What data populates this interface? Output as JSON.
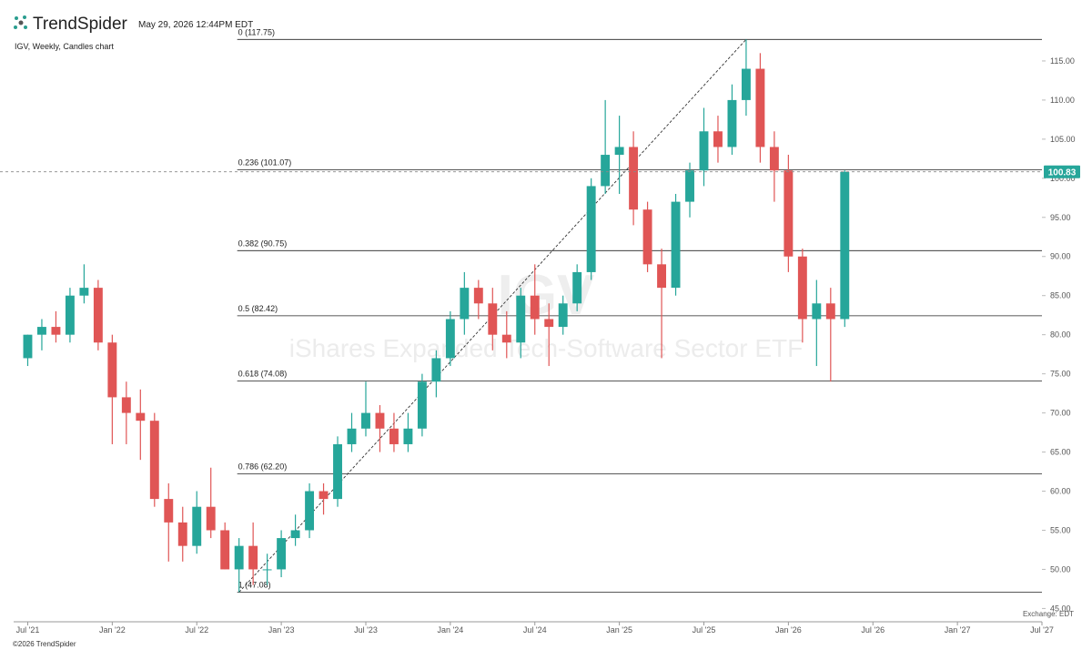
{
  "header": {
    "logo": "TrendSpider",
    "timestamp": "May 29, 2026 12:44PM EDT"
  },
  "footer": {
    "copyright": "©2026 TrendSpider",
    "exchange": "Exchange: EDT"
  },
  "chart_data": {
    "type": "candlestick",
    "title": "IGV, Weekly, Candles chart",
    "watermark_symbol": "IGV",
    "watermark_name": "iShares Expanded Tech-Software Sector ETF",
    "up_color": "#26a69a",
    "down_color": "#e05555",
    "x": [
      "2021-07",
      "2021-08",
      "2021-09",
      "2021-10",
      "2021-11",
      "2021-12",
      "2022-01",
      "2022-02",
      "2022-03",
      "2022-04",
      "2022-05",
      "2022-06",
      "2022-07",
      "2022-08",
      "2022-09",
      "2022-10",
      "2022-11",
      "2022-12",
      "2023-01",
      "2023-02",
      "2023-03",
      "2023-04",
      "2023-05",
      "2023-06",
      "2023-07",
      "2023-08",
      "2023-09",
      "2023-10",
      "2023-11",
      "2023-12",
      "2024-01",
      "2024-02",
      "2024-03",
      "2024-04",
      "2024-05",
      "2024-06",
      "2024-07",
      "2024-08",
      "2024-09",
      "2024-10",
      "2024-11",
      "2024-12",
      "2025-01",
      "2025-02",
      "2025-03",
      "2025-04",
      "2025-05",
      "2025-06",
      "2025-07",
      "2025-08",
      "2025-09",
      "2025-10",
      "2025-11",
      "2025-12",
      "2026-01",
      "2026-02",
      "2026-03",
      "2026-04",
      "2026-05"
    ],
    "open": [
      77,
      80,
      81,
      80,
      85,
      86,
      79,
      72,
      70,
      69,
      59,
      56,
      53,
      58,
      55,
      50,
      53,
      50,
      50,
      54,
      55,
      60,
      59,
      66,
      68,
      70,
      68,
      66,
      68,
      74,
      77,
      82,
      86,
      84,
      80,
      79,
      85,
      82,
      81,
      84,
      88,
      99,
      103,
      104,
      96,
      89,
      86,
      97,
      101,
      106,
      104,
      110,
      114,
      104,
      101,
      90,
      82,
      84,
      82
    ],
    "high": [
      80,
      82,
      83,
      86,
      89,
      87,
      80,
      74,
      73,
      70,
      61,
      58,
      60,
      63,
      56,
      54,
      56,
      52,
      55,
      57,
      61,
      61,
      67,
      70,
      74,
      71,
      70,
      70,
      75,
      78,
      83,
      88,
      87,
      86,
      83,
      86,
      89,
      84,
      85,
      89,
      100,
      110,
      108,
      106,
      97,
      91,
      98,
      102,
      109,
      108,
      112,
      117.75,
      116,
      106,
      103,
      91,
      87,
      86,
      101
    ],
    "low": [
      76,
      78,
      79,
      79,
      84,
      78,
      66,
      66,
      64,
      58,
      51,
      51,
      52,
      54,
      50,
      47.08,
      48,
      48,
      49,
      53,
      54,
      57,
      58,
      65,
      67,
      65,
      65,
      65,
      67,
      72,
      76,
      80,
      82,
      78,
      77,
      77,
      80,
      76,
      80,
      83,
      87,
      98,
      98,
      94,
      88,
      77,
      85,
      95,
      99,
      102,
      103,
      108,
      102,
      97,
      88,
      79,
      76,
      74,
      81
    ],
    "close": [
      80,
      81,
      80,
      85,
      86,
      79,
      72,
      70,
      69,
      59,
      56,
      53,
      58,
      55,
      50,
      53,
      50,
      50,
      54,
      55,
      60,
      59,
      66,
      68,
      70,
      68,
      66,
      68,
      74,
      77,
      82,
      86,
      84,
      80,
      79,
      85,
      82,
      81,
      84,
      88,
      99,
      103,
      104,
      96,
      89,
      86,
      97,
      101,
      106,
      104,
      110,
      114,
      104,
      101,
      90,
      82,
      84,
      82,
      100.83
    ],
    "last_price": 100.83,
    "ylim": [
      43.3,
      119.3
    ],
    "yticks": [
      {
        "value": 45,
        "label": "45.00"
      },
      {
        "value": 50,
        "label": "50.00"
      },
      {
        "value": 55,
        "label": "55.00"
      },
      {
        "value": 60,
        "label": "60.00"
      },
      {
        "value": 65,
        "label": "65.00"
      },
      {
        "value": 70,
        "label": "70.00"
      },
      {
        "value": 75,
        "label": "75.00"
      },
      {
        "value": 80,
        "label": "80.00"
      },
      {
        "value": 85,
        "label": "85.00"
      },
      {
        "value": 90,
        "label": "90.00"
      },
      {
        "value": 95,
        "label": "95.00"
      },
      {
        "value": 100,
        "label": "100.00"
      },
      {
        "value": 105,
        "label": "105.00"
      },
      {
        "value": 110,
        "label": "110.00"
      },
      {
        "value": 115,
        "label": "115.00"
      }
    ],
    "xlim": [
      "2021-06",
      "2027-07"
    ],
    "xticks": [
      {
        "value": "2021-07",
        "label": "Jul '21"
      },
      {
        "value": "2022-01",
        "label": "Jan '22"
      },
      {
        "value": "2022-07",
        "label": "Jul '22"
      },
      {
        "value": "2023-01",
        "label": "Jan '23"
      },
      {
        "value": "2023-07",
        "label": "Jul '23"
      },
      {
        "value": "2024-01",
        "label": "Jan '24"
      },
      {
        "value": "2024-07",
        "label": "Jul '24"
      },
      {
        "value": "2025-01",
        "label": "Jan '25"
      },
      {
        "value": "2025-07",
        "label": "Jul '25"
      },
      {
        "value": "2026-01",
        "label": "Jan '26"
      },
      {
        "value": "2026-07",
        "label": "Jul '26"
      },
      {
        "value": "2027-01",
        "label": "Jan '27"
      },
      {
        "value": "2027-07",
        "label": "Jul '27"
      }
    ],
    "fib_levels": [
      {
        "label": "0 (117.75)",
        "value": 117.75
      },
      {
        "label": "0.236 (101.07)",
        "value": 101.07
      },
      {
        "label": "0.382 (90.75)",
        "value": 90.75
      },
      {
        "label": "0.5 (82.42)",
        "value": 82.42
      },
      {
        "label": "0.618 (74.08)",
        "value": 74.08
      },
      {
        "label": "0.786 (62.20)",
        "value": 62.2
      },
      {
        "label": "1 (47.08)",
        "value": 47.08
      }
    ],
    "fib_start": "2022-10",
    "trend_line": {
      "from": {
        "x": "2022-10",
        "y": 47.08
      },
      "to": {
        "x": "2025-10",
        "y": 117.75
      }
    }
  }
}
